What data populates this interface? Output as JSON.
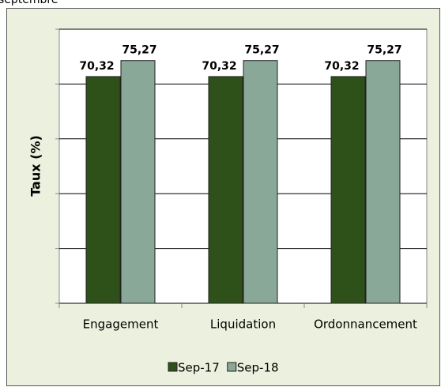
{
  "title": "septembre",
  "chart_data": {
    "type": "bar",
    "y_label": "Taux (%)",
    "categories": [
      "Engagement",
      "Liquidation",
      "Ordonnancement"
    ],
    "series": [
      {
        "name": "Sep-17",
        "color": "#2e5119",
        "values": [
          70.32,
          70.32,
          70.32
        ],
        "value_labels": [
          "70,32",
          "70,32",
          "70,32"
        ]
      },
      {
        "name": "Sep-18",
        "color": "#8aa897",
        "values": [
          75.27,
          75.27,
          75.27
        ],
        "value_labels": [
          "75,27",
          "75,27",
          "75,27"
        ]
      }
    ],
    "ylim": [
      0,
      85
    ],
    "yticks": [
      0,
      17,
      34,
      51,
      68,
      85
    ],
    "grid": true,
    "legend": "bottom"
  }
}
